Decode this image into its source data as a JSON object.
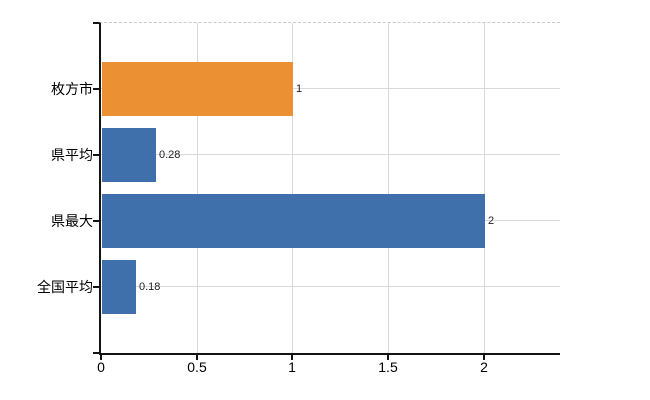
{
  "chart_data": {
    "type": "bar",
    "orientation": "horizontal",
    "title": "",
    "xlabel": "",
    "ylabel": "",
    "categories": [
      "枚方市",
      "県平均",
      "県最大",
      "全国平均"
    ],
    "values": [
      1,
      0.28,
      2,
      0.18
    ],
    "value_labels": [
      "1",
      "0.28",
      "2",
      "0.18"
    ],
    "bar_colors": [
      "#EC9133",
      "#4070AC",
      "#4070AC",
      "#4070AC"
    ],
    "x_ticks": [
      {
        "value": 0,
        "label": "0"
      },
      {
        "value": 0.5,
        "label": "0.5"
      },
      {
        "value": 1,
        "label": "1"
      },
      {
        "value": 1.5,
        "label": "1.5"
      },
      {
        "value": 2,
        "label": "2"
      }
    ],
    "xlim": [
      0,
      2.4
    ],
    "grid": true,
    "legend": false
  },
  "colors": {
    "background": "#ffffff",
    "axis": "#141414",
    "gridline": "#d8d8d8",
    "plot_top_border": "#c8c8c8",
    "label_text": "#000000",
    "value_text": "#222222",
    "highlight_bar": "#EC9133",
    "base_bar": "#4070AC"
  }
}
